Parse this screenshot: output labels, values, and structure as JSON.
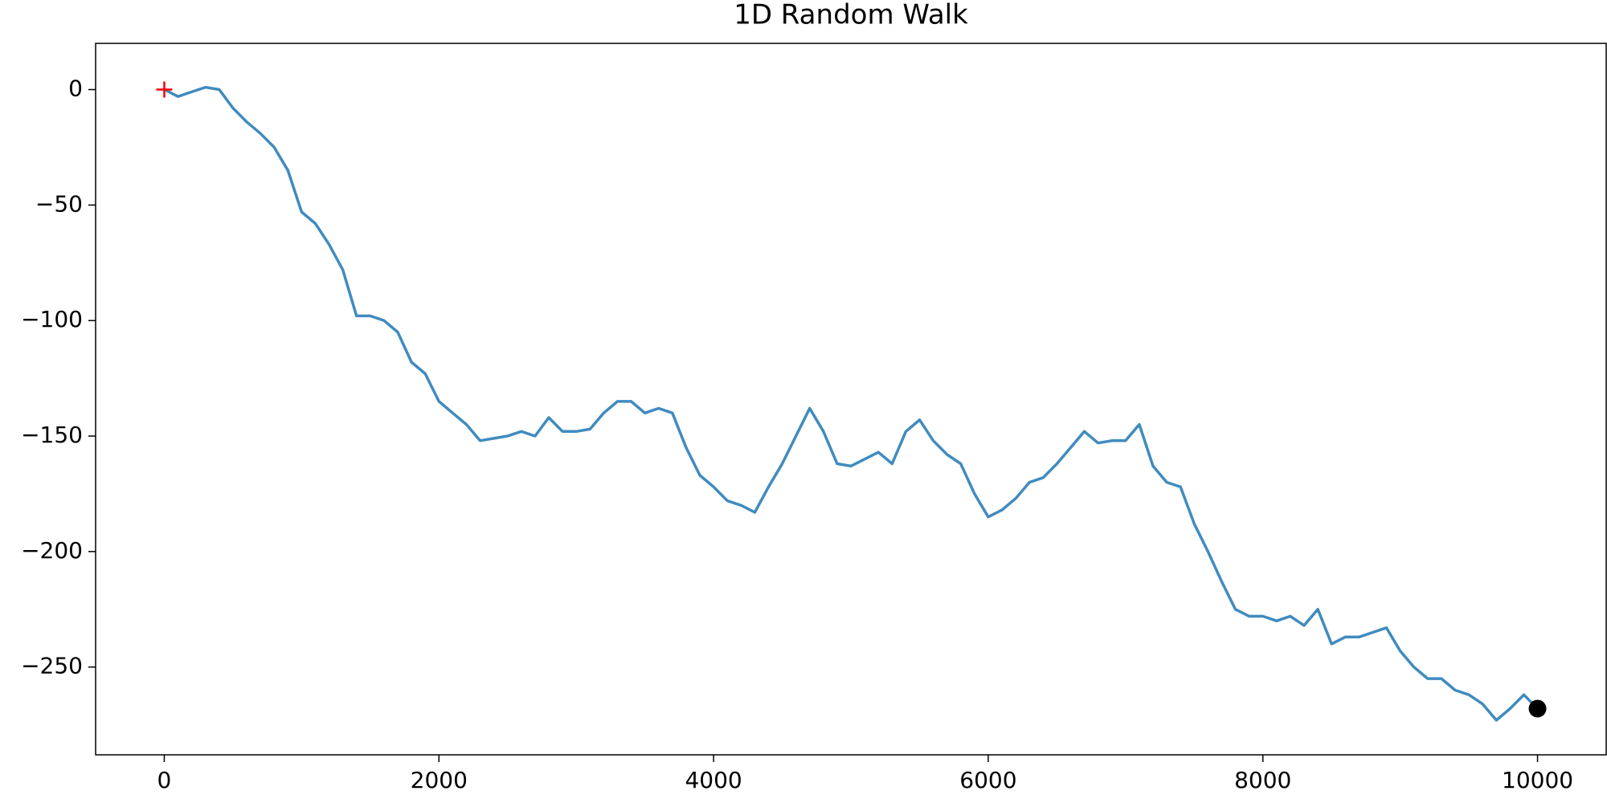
{
  "chart_data": {
    "type": "line",
    "title": "1D Random Walk",
    "x": [
      0,
      100,
      200,
      300,
      400,
      500,
      600,
      700,
      800,
      900,
      1000,
      1100,
      1200,
      1300,
      1400,
      1500,
      1600,
      1700,
      1800,
      1900,
      2000,
      2100,
      2200,
      2300,
      2400,
      2500,
      2600,
      2700,
      2800,
      2900,
      3000,
      3100,
      3200,
      3300,
      3400,
      3500,
      3600,
      3700,
      3800,
      3900,
      4000,
      4100,
      4200,
      4300,
      4400,
      4500,
      4600,
      4700,
      4800,
      4900,
      5000,
      5100,
      5200,
      5300,
      5400,
      5500,
      5600,
      5700,
      5800,
      5900,
      6000,
      6100,
      6200,
      6300,
      6400,
      6500,
      6600,
      6700,
      6800,
      6900,
      7000,
      7100,
      7200,
      7300,
      7400,
      7500,
      7600,
      7700,
      7800,
      7900,
      8000,
      8100,
      8200,
      8300,
      8400,
      8500,
      8600,
      8700,
      8800,
      8900,
      9000,
      9100,
      9200,
      9300,
      9400,
      9500,
      9600,
      9700,
      9800,
      9900,
      10000
    ],
    "series": [
      {
        "color": "#1f77b4",
        "values": [
          0,
          -3,
          -1,
          1,
          0,
          -8,
          -14,
          -19,
          -25,
          -35,
          -53,
          -58,
          -67,
          -78,
          -98,
          -98,
          -100,
          -105,
          -118,
          -123,
          -135,
          -140,
          -145,
          -152,
          -151,
          -150,
          -148,
          -150,
          -142,
          -148,
          -148,
          -147,
          -140,
          -135,
          -135,
          -140,
          -138,
          -140,
          -155,
          -167,
          -172,
          -178,
          -180,
          -183,
          -172,
          -162,
          -150,
          -138,
          -148,
          -162,
          -163,
          -160,
          -157,
          -162,
          -148,
          -143,
          -152,
          -158,
          -162,
          -175,
          -185,
          -182,
          -177,
          -170,
          -168,
          -162,
          -155,
          -148,
          -153,
          -152,
          -152,
          -145,
          -163,
          -170,
          -172,
          -188,
          -200,
          -213,
          -225,
          -228,
          -228,
          -230,
          -228,
          -232,
          -225,
          -240,
          -237,
          -237,
          -235,
          -233,
          -243,
          -250,
          -255,
          -255,
          -260,
          -262,
          -266,
          -273,
          -268,
          -262,
          -268
        ]
      }
    ],
    "start": {
      "x": 0,
      "y": 0,
      "color": "#ff0000"
    },
    "end": {
      "x": 10000,
      "y": -268,
      "color": "#000000"
    },
    "xlim": [
      -500,
      10500
    ],
    "ylim": [
      -288,
      20
    ],
    "xticks": [
      0,
      2000,
      4000,
      6000,
      8000,
      10000
    ],
    "yticks": [
      0,
      {
        "value": -50,
        "label": "−50"
      },
      {
        "value": -100,
        "label": "−100"
      },
      {
        "value": -150,
        "label": "−150"
      },
      {
        "value": -200,
        "label": "−200"
      },
      {
        "value": -250,
        "label": "−250"
      }
    ],
    "grid": false
  }
}
